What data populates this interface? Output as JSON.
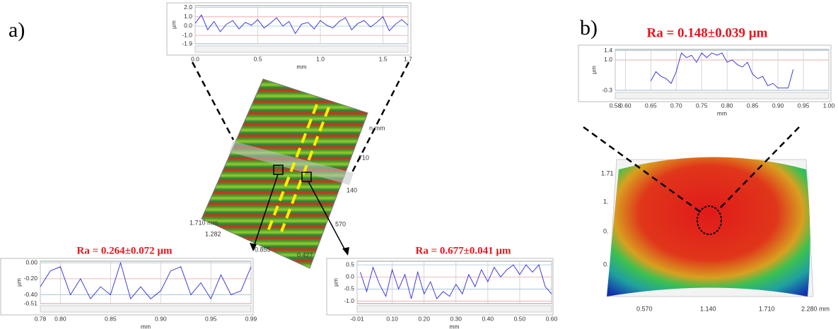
{
  "panel_labels": [
    "a)",
    "b)"
  ],
  "surface_a_labels": [
    "1.710 mm",
    "1.282",
    "0.855",
    "0.427",
    "570",
    "140",
    "710",
    "n mm"
  ],
  "surface_b_labels": [
    "1.71",
    "1.",
    "0.",
    "0.",
    "0.570",
    "1.140",
    "1.710",
    "2.280 mm"
  ],
  "chart_data": [
    {
      "type": "line",
      "x_label": "mm",
      "y_label": "µm",
      "x": [
        0,
        0.05,
        0.1,
        0.15,
        0.2,
        0.25,
        0.3,
        0.35,
        0.4,
        0.45,
        0.5,
        0.55,
        0.6,
        0.65,
        0.7,
        0.75,
        0.8,
        0.85,
        0.9,
        0.95,
        1.0,
        1.05,
        1.1,
        1.15,
        1.2,
        1.25,
        1.3,
        1.35,
        1.4,
        1.45,
        1.5,
        1.55,
        1.6,
        1.65,
        1.7
      ],
      "series": [
        {
          "color": "#2a2ad8",
          "values": [
            0.3,
            1.2,
            -0.4,
            0.5,
            -0.6,
            0.2,
            0.6,
            -0.3,
            0.4,
            0.1,
            0.7,
            -0.2,
            0.3,
            0.9,
            0.0,
            0.5,
            -0.8,
            0.2,
            0.4,
            -0.3,
            0.6,
            0.1,
            -0.2,
            0.5,
            0.9,
            -0.4,
            0.3,
            0.6,
            -0.1,
            0.4,
            1.0,
            -0.5,
            0.2,
            0.7,
            0.1
          ]
        }
      ],
      "xlim": [
        0,
        1.7
      ],
      "ylim": [
        -1.9,
        2.2
      ],
      "xticks": [
        {
          "value": 0,
          "label": "0.0"
        },
        0.5,
        {
          "value": 1,
          "label": "1.0"
        },
        1.5,
        1.7
      ],
      "yticks": [
        {
          "value": 2,
          "label": "2.0"
        },
        {
          "value": 1,
          "label": "1.0"
        },
        {
          "value": 0,
          "label": "0.0"
        },
        {
          "value": -1,
          "label": "-1.0"
        },
        -1.9
      ]
    },
    {
      "type": "line",
      "title": "Ra = 0.264±0.072 µm",
      "x_label": "mm",
      "y_label": "µm",
      "x": [
        0.78,
        0.79,
        0.8,
        0.81,
        0.82,
        0.83,
        0.84,
        0.85,
        0.86,
        0.87,
        0.88,
        0.89,
        0.9,
        0.91,
        0.92,
        0.93,
        0.94,
        0.95,
        0.96,
        0.97,
        0.98,
        0.99
      ],
      "series": [
        {
          "color": "#2a2ad8",
          "values": [
            -0.3,
            -0.1,
            -0.05,
            -0.4,
            -0.2,
            -0.45,
            -0.3,
            -0.4,
            0.0,
            -0.45,
            -0.3,
            -0.45,
            -0.35,
            -0.1,
            -0.05,
            -0.4,
            -0.25,
            -0.45,
            -0.15,
            -0.4,
            -0.35,
            -0.05
          ]
        }
      ],
      "xlim": [
        0.78,
        0.99
      ],
      "ylim": [
        -0.51,
        0.02
      ],
      "xticks": [
        0.78,
        {
          "value": 0.8,
          "label": "0.80"
        },
        0.85,
        {
          "value": 0.9,
          "label": "0.90"
        },
        0.95,
        0.99
      ],
      "yticks": [
        {
          "value": 0,
          "label": "0.00"
        },
        {
          "value": -0.2,
          "label": "-0.20"
        },
        {
          "value": -0.4,
          "label": "-0.40"
        },
        -0.51
      ]
    },
    {
      "type": "line",
      "title": "Ra = 0.677±0.041 µm",
      "x_label": "mm",
      "y_label": "µm",
      "x": [
        0,
        0.02,
        0.04,
        0.06,
        0.08,
        0.1,
        0.12,
        0.14,
        0.16,
        0.18,
        0.2,
        0.22,
        0.24,
        0.26,
        0.28,
        0.3,
        0.32,
        0.34,
        0.36,
        0.38,
        0.4,
        0.42,
        0.44,
        0.46,
        0.48,
        0.5,
        0.52,
        0.54,
        0.56,
        0.58,
        0.6
      ],
      "series": [
        {
          "color": "#2a2ad8",
          "values": [
            0.2,
            -0.6,
            0.4,
            -0.3,
            -0.8,
            0.3,
            -0.5,
            0.1,
            -0.9,
            0.2,
            -0.7,
            -0.2,
            -0.9,
            -0.6,
            -0.8,
            -0.3,
            -0.7,
            0.1,
            -0.4,
            0.3,
            -0.2,
            0.4,
            0.0,
            0.3,
            0.5,
            0.1,
            0.5,
            0.2,
            0.5,
            -0.4,
            -0.7
          ]
        }
      ],
      "xlim": [
        -0.01,
        0.6
      ],
      "ylim": [
        -1.1,
        0.65
      ],
      "xticks": [
        -0.01,
        {
          "value": 0.1,
          "label": "0.10"
        },
        {
          "value": 0.2,
          "label": "0.20"
        },
        {
          "value": 0.3,
          "label": "0.30"
        },
        {
          "value": 0.4,
          "label": "0.40"
        },
        {
          "value": 0.5,
          "label": "0.50"
        },
        {
          "value": 0.6,
          "label": "0.60"
        }
      ],
      "yticks": [
        0.5,
        {
          "value": 0,
          "label": "0.0"
        },
        -0.5,
        {
          "value": -1,
          "label": "-1.0"
        }
      ]
    },
    {
      "type": "line",
      "title": "Ra = 0.148±0.039 µm",
      "x_label": "mm",
      "y_label": "µm",
      "x": [
        0.65,
        0.66,
        0.67,
        0.68,
        0.69,
        0.7,
        0.71,
        0.72,
        0.73,
        0.74,
        0.75,
        0.76,
        0.77,
        0.78,
        0.79,
        0.8,
        0.81,
        0.82,
        0.83,
        0.84,
        0.85,
        0.86,
        0.87,
        0.88,
        0.89,
        0.9,
        0.91,
        0.92,
        0.93
      ],
      "series": [
        {
          "color": "#2a2ad8",
          "values": [
            0.1,
            0.5,
            0.3,
            0.2,
            0.0,
            0.5,
            1.3,
            1.1,
            1.2,
            0.9,
            1.3,
            1.1,
            1.3,
            1.2,
            1.3,
            0.9,
            1.0,
            0.8,
            0.7,
            0.9,
            0.4,
            0.2,
            0.3,
            -0.1,
            0.0,
            -0.2,
            -0.2,
            -0.2,
            0.6
          ]
        }
      ],
      "xlim": [
        0.58,
        1.0
      ],
      "ylim": [
        -0.3,
        1.45
      ],
      "xticks": [
        0.58,
        {
          "value": 0.6,
          "label": "0.60"
        },
        0.65,
        {
          "value": 0.7,
          "label": "0.70"
        },
        0.75,
        {
          "value": 0.8,
          "label": "0.80"
        },
        0.85,
        {
          "value": 0.9,
          "label": "0.90"
        },
        0.95,
        {
          "value": 1,
          "label": "1.00"
        }
      ],
      "yticks": [
        1.4,
        {
          "value": 1,
          "label": "1.0"
        },
        -0.3
      ]
    }
  ]
}
